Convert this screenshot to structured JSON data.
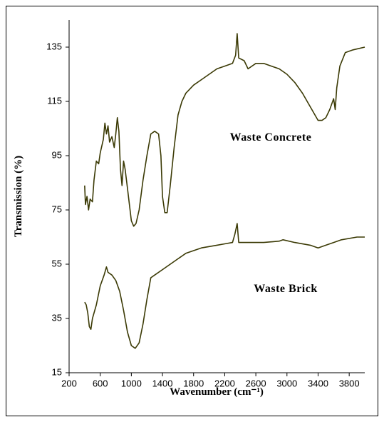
{
  "chart_data": {
    "type": "line",
    "x_label": "Wavenumber (cm⁻¹)",
    "y_label": "Transmission (%)",
    "xlim": [
      200,
      4000
    ],
    "ylim": [
      15,
      145
    ],
    "xticks": [
      200,
      600,
      1000,
      1400,
      1800,
      2200,
      2600,
      3000,
      3400,
      3800
    ],
    "yticks": [
      15,
      35,
      55,
      75,
      95,
      115,
      135
    ],
    "series": [
      {
        "name": "Waste Concrete",
        "color": "#3b3a05",
        "x": [
          400,
          410,
          430,
          450,
          470,
          500,
          520,
          550,
          580,
          600,
          640,
          660,
          680,
          700,
          720,
          750,
          780,
          800,
          820,
          840,
          860,
          880,
          900,
          920,
          950,
          1000,
          1030,
          1060,
          1100,
          1150,
          1200,
          1250,
          1300,
          1350,
          1380,
          1400,
          1430,
          1460,
          1500,
          1550,
          1600,
          1650,
          1700,
          1800,
          1900,
          2000,
          2100,
          2200,
          2300,
          2340,
          2360,
          2380,
          2450,
          2500,
          2600,
          2700,
          2800,
          2900,
          3000,
          3100,
          3200,
          3300,
          3400,
          3450,
          3500,
          3550,
          3600,
          3620,
          3640,
          3680,
          3750,
          3850,
          4000
        ],
        "values": [
          84,
          77,
          80,
          75,
          79,
          78,
          86,
          93,
          92,
          96,
          101,
          107,
          103,
          106,
          100,
          102,
          98,
          103,
          109,
          104,
          90,
          84,
          93,
          90,
          83,
          71,
          69,
          70,
          75,
          86,
          95,
          103,
          104,
          103,
          95,
          80,
          74,
          74,
          84,
          98,
          110,
          115,
          118,
          121,
          123,
          125,
          127,
          128,
          129,
          132,
          140,
          131,
          130,
          127,
          129,
          129,
          128,
          127,
          125,
          122,
          118,
          113,
          108,
          108,
          109,
          112,
          116,
          112,
          120,
          128,
          133,
          134,
          135
        ]
      },
      {
        "name": "Waste Brick",
        "color": "#3b3a05",
        "x": [
          400,
          420,
          440,
          460,
          480,
          500,
          550,
          600,
          650,
          680,
          700,
          750,
          800,
          850,
          900,
          950,
          1000,
          1050,
          1100,
          1150,
          1200,
          1250,
          1300,
          1400,
          1500,
          1600,
          1700,
          1800,
          1900,
          2000,
          2100,
          2200,
          2300,
          2330,
          2360,
          2380,
          2500,
          2700,
          2900,
          2950,
          3100,
          3300,
          3400,
          3500,
          3600,
          3700,
          3900,
          4000
        ],
        "values": [
          41,
          40,
          37,
          32,
          31,
          35,
          40,
          47,
          51,
          54,
          52,
          51,
          49,
          45,
          38,
          30,
          25,
          24,
          26,
          33,
          42,
          50,
          51,
          53,
          55,
          57,
          59,
          60,
          61,
          61.5,
          62,
          62.5,
          63,
          66,
          70,
          63,
          63,
          63,
          63.5,
          64,
          63,
          62,
          61,
          62,
          63,
          64,
          65,
          65
        ]
      }
    ]
  }
}
